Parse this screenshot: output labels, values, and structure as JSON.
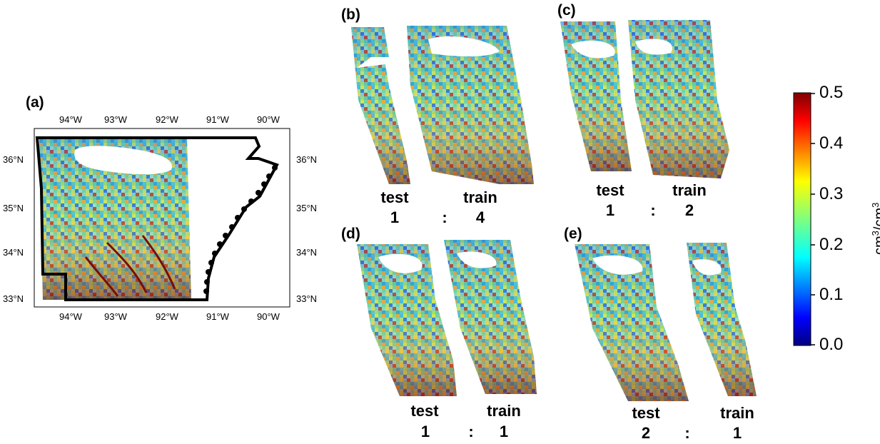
{
  "panels": {
    "a": {
      "label": "(a)",
      "lon_ticks_top": [
        "94°W",
        "93°W",
        "92°W",
        "91°W",
        "90°W"
      ],
      "lon_ticks_bottom": [
        "94°W",
        "93°W",
        "92°W",
        "91°W",
        "90°W"
      ],
      "lat_ticks_left": [
        "36°N",
        "35°N",
        "34°N",
        "33°N"
      ],
      "lat_ticks_right": [
        "36°N",
        "35°N",
        "34°N",
        "33°N"
      ]
    },
    "b": {
      "label": "(b)",
      "left_word": "test",
      "right_word": "train",
      "left_ratio": "1",
      "sep": ":",
      "right_ratio": "4"
    },
    "c": {
      "label": "(c)",
      "left_word": "test",
      "right_word": "train",
      "left_ratio": "1",
      "sep": ":",
      "right_ratio": "2"
    },
    "d": {
      "label": "(d)",
      "left_word": "test",
      "right_word": "train",
      "left_ratio": "1",
      "sep": ":",
      "right_ratio": "1"
    },
    "e": {
      "label": "(e)",
      "left_word": "test",
      "right_word": "train",
      "left_ratio": "2",
      "sep": ":",
      "right_ratio": "1"
    }
  },
  "colorbar": {
    "ticks": [
      "0.5",
      "0.4",
      "0.3",
      "0.2",
      "0.1",
      "0.0"
    ],
    "colormap": "jet",
    "min": 0.0,
    "max": 0.5,
    "colors": [
      "#00007f",
      "#0000ff",
      "#007fff",
      "#00ffff",
      "#7fff7f",
      "#ffff00",
      "#ff7f00",
      "#ff0000",
      "#7f0000"
    ]
  },
  "units": {
    "base": "cm",
    "sup1": "3",
    "sep": "/cm",
    "sup2": "3"
  }
}
